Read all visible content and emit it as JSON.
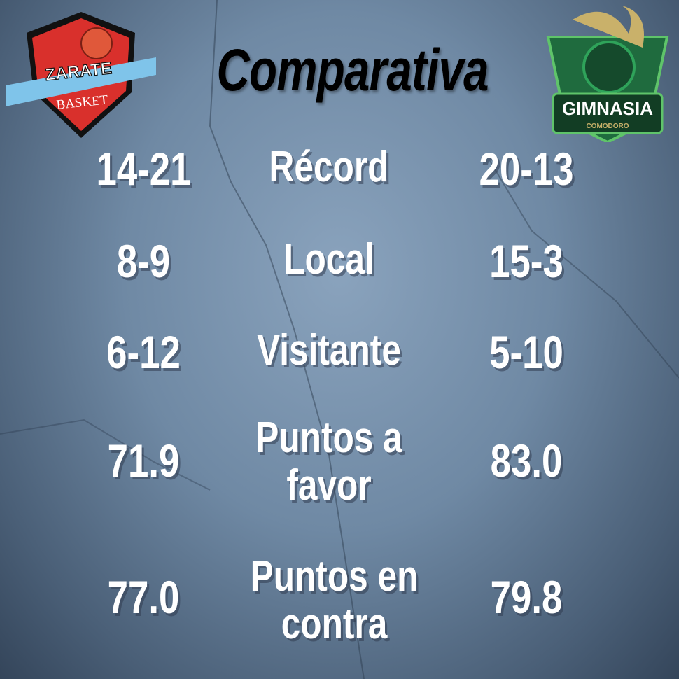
{
  "title": "Comparativa",
  "home_team": {
    "name": "Zarate Basket",
    "logo_text": [
      "ZARATE",
      "BASKET"
    ],
    "colors": {
      "primary": "#d9302c",
      "secondary": "#7fc4ea"
    }
  },
  "away_team": {
    "name": "Gimnasia Comodoro",
    "logo_text": [
      "GIMNASIA",
      "COMODORO"
    ],
    "colors": {
      "primary": "#1f6b3e",
      "secondary": "#c9b16a"
    }
  },
  "rows": [
    {
      "label": "Récord",
      "home": "14-21",
      "away": "20-13"
    },
    {
      "label": "Local",
      "home": "8-9",
      "away": "15-3"
    },
    {
      "label": "Visitante",
      "home": "6-12",
      "away": "5-10"
    },
    {
      "label": "Puntos a favor",
      "home": "71.9",
      "away": "83.0"
    },
    {
      "label": "Puntos en contra",
      "home": "77.0",
      "away": "79.8"
    }
  ]
}
